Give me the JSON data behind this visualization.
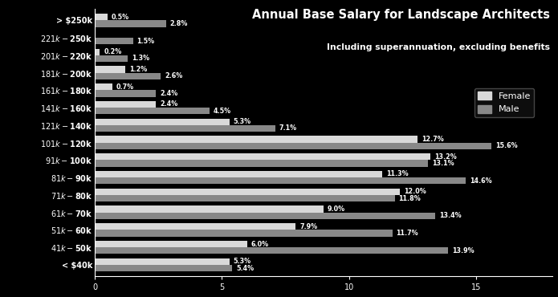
{
  "categories": [
    "> $250k",
    "$221k - $250k",
    "$201k - $220k",
    "$181k - $200k",
    "$161k - $180k",
    "$141k - $160k",
    "$121k - $140k",
    "$101k - $120k",
    "$91k - $100k",
    "$81k - $90k",
    "$71k - $80k",
    "$61k - $70k",
    "$51k - $60k",
    "$41k - $50k",
    "< $40k"
  ],
  "female_values": [
    0.5,
    0.0,
    0.2,
    1.2,
    0.7,
    2.4,
    5.3,
    12.7,
    13.2,
    11.3,
    12.0,
    9.0,
    7.9,
    6.0,
    5.3
  ],
  "male_values": [
    2.8,
    1.5,
    1.3,
    2.6,
    2.4,
    4.5,
    7.1,
    15.6,
    13.1,
    14.6,
    11.8,
    13.4,
    11.7,
    13.9,
    5.4
  ],
  "female_color": "#d9d9d9",
  "male_color": "#888888",
  "bg_color": "#000000",
  "text_color": "#ffffff",
  "title": "Annual Base Salary for Landscape Architects",
  "subtitle": "Including superannuation, excluding benefits",
  "legend_female": "Female",
  "legend_male": "Male",
  "bar_height": 0.38,
  "xlim": [
    0,
    18
  ],
  "xticks": [
    0,
    5,
    10,
    15
  ]
}
